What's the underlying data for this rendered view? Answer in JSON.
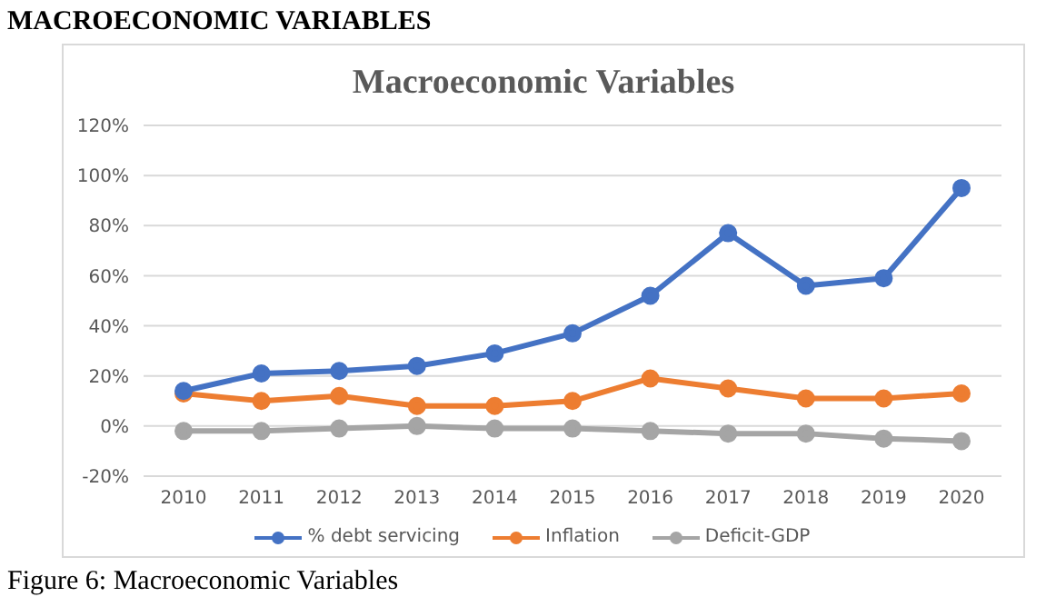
{
  "chart_data": {
    "type": "line",
    "title": "Macroeconomic Variables",
    "categories": [
      "2010",
      "2011",
      "2012",
      "2013",
      "2014",
      "2015",
      "2016",
      "2017",
      "2018",
      "2019",
      "2020"
    ],
    "series": [
      {
        "name": "% debt servicing",
        "color": "#4472c4",
        "values": [
          14,
          21,
          22,
          24,
          29,
          37,
          52,
          77,
          56,
          59,
          95
        ]
      },
      {
        "name": "Inflation",
        "color": "#ed7d31",
        "values": [
          13,
          10,
          12,
          8,
          8,
          10,
          19,
          15,
          11,
          11,
          13
        ]
      },
      {
        "name": "Deficit-GDP",
        "color": "#a5a5a5",
        "values": [
          -2,
          -2,
          -1,
          0,
          -1,
          -1,
          -2,
          -3,
          -3,
          -5,
          -6
        ]
      }
    ],
    "ylim": [
      -20,
      120
    ],
    "yticks": [
      {
        "value": -20,
        "label": "-20%"
      },
      {
        "value": 0,
        "label": "0%"
      },
      {
        "value": 20,
        "label": "20%"
      },
      {
        "value": 40,
        "label": "40%"
      },
      {
        "value": 60,
        "label": "60%"
      },
      {
        "value": 80,
        "label": "80%"
      },
      {
        "value": 100,
        "label": "100%"
      },
      {
        "value": 120,
        "label": "120%"
      }
    ],
    "grid": "y",
    "legend": "bottom",
    "marker": "circle",
    "line_style": "solid",
    "annotations": [
      "MACROECONOMIC VARIABLES",
      "Figure 6: Macroeconomic Variables"
    ]
  }
}
